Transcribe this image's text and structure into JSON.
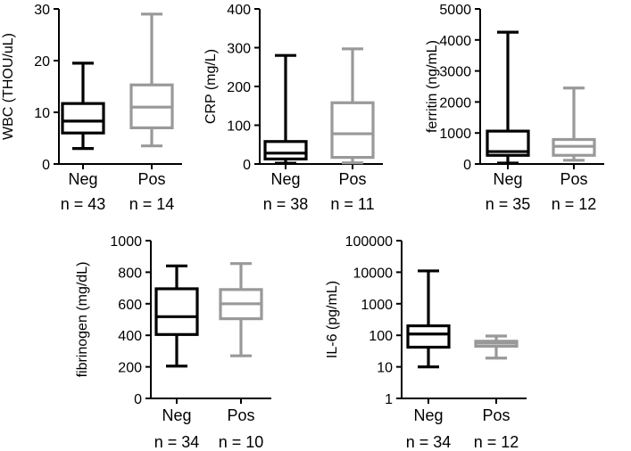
{
  "chart_data": [
    {
      "type": "boxplot",
      "ylabel": "WBC (THOU/uL)",
      "scale": "linear",
      "ylim": [
        0,
        30
      ],
      "yticks": [
        0,
        10,
        20,
        30
      ],
      "ytick_labels": [
        "0",
        "10",
        "20",
        "30"
      ],
      "categories": [
        "Neg",
        "Pos"
      ],
      "counts": [
        "n = 43",
        "n = 14"
      ],
      "colors": [
        "#000000",
        "#999999"
      ],
      "boxes": [
        {
          "min": 3,
          "q1": 6,
          "median": 8.3,
          "q3": 11.7,
          "max": 19.5
        },
        {
          "min": 3.5,
          "q1": 7,
          "median": 11,
          "q3": 15.3,
          "max": 29
        }
      ]
    },
    {
      "type": "boxplot",
      "ylabel": "CRP (mg/L)",
      "scale": "linear",
      "ylim": [
        0,
        400
      ],
      "yticks": [
        0,
        100,
        200,
        300,
        400
      ],
      "ytick_labels": [
        "0",
        "100",
        "200",
        "300",
        "400"
      ],
      "categories": [
        "Neg",
        "Pos"
      ],
      "counts": [
        "n = 38",
        "n = 11"
      ],
      "colors": [
        "#000000",
        "#999999"
      ],
      "boxes": [
        {
          "min": 2,
          "q1": 13,
          "median": 28,
          "q3": 58,
          "max": 280
        },
        {
          "min": 3,
          "q1": 17,
          "median": 78,
          "q3": 158,
          "max": 297
        }
      ]
    },
    {
      "type": "boxplot",
      "ylabel": "ferritin (ng/mL)",
      "scale": "linear",
      "ylim": [
        0,
        5000
      ],
      "yticks": [
        0,
        1000,
        2000,
        3000,
        4000,
        5000
      ],
      "ytick_labels": [
        "0",
        "1000",
        "2000",
        "3000",
        "4000",
        "5000"
      ],
      "categories": [
        "Neg",
        "Pos"
      ],
      "counts": [
        "n = 35",
        "n = 12"
      ],
      "colors": [
        "#000000",
        "#999999"
      ],
      "boxes": [
        {
          "min": 30,
          "q1": 280,
          "median": 400,
          "q3": 1060,
          "max": 4250
        },
        {
          "min": 120,
          "q1": 280,
          "median": 570,
          "q3": 790,
          "max": 2450
        }
      ]
    },
    {
      "type": "boxplot",
      "ylabel": "fibrinogen (mg/dL)",
      "scale": "linear",
      "ylim": [
        0,
        1000
      ],
      "yticks": [
        0,
        200,
        400,
        600,
        800,
        1000
      ],
      "ytick_labels": [
        "0",
        "200",
        "400",
        "600",
        "800",
        "1000"
      ],
      "categories": [
        "Neg",
        "Pos"
      ],
      "counts": [
        "n = 34",
        "n = 10"
      ],
      "colors": [
        "#000000",
        "#999999"
      ],
      "boxes": [
        {
          "min": 205,
          "q1": 405,
          "median": 518,
          "q3": 695,
          "max": 840
        },
        {
          "min": 270,
          "q1": 505,
          "median": 600,
          "q3": 690,
          "max": 855
        }
      ]
    },
    {
      "type": "boxplot",
      "ylabel": "IL-6 (pg/mL)",
      "scale": "log",
      "ylim": [
        1,
        100000
      ],
      "yticks": [
        1,
        10,
        100,
        1000,
        10000,
        100000
      ],
      "ytick_labels": [
        "1",
        "10",
        "100",
        "1000",
        "10000",
        "100000"
      ],
      "categories": [
        "Neg",
        "Pos"
      ],
      "counts": [
        "n = 34",
        "n = 12"
      ],
      "colors": [
        "#000000",
        "#999999"
      ],
      "boxes": [
        {
          "min": 10,
          "q1": 42,
          "median": 110,
          "q3": 200,
          "max": 11000
        },
        {
          "min": 19,
          "q1": 45,
          "median": 57,
          "q3": 65,
          "max": 95
        }
      ]
    }
  ]
}
